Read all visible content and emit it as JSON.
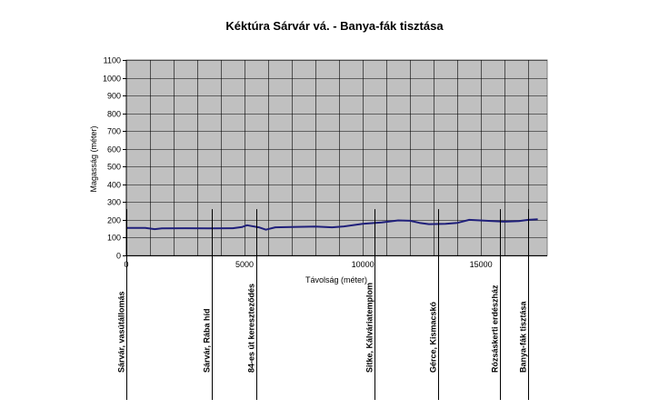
{
  "chart_data": {
    "type": "line",
    "title": "Kéktúra Sárvár vá. - Banya-fák tisztása",
    "xlabel": "Távolság (méter)",
    "ylabel": "Magasság (méter)",
    "xlim": [
      0,
      17800
    ],
    "ylim": [
      0,
      1100
    ],
    "x_ticks": [
      0,
      5000,
      10000,
      15000
    ],
    "y_ticks": [
      0,
      100,
      200,
      300,
      400,
      500,
      600,
      700,
      800,
      900,
      1000,
      1100
    ],
    "grid": true,
    "plot_background": "#c0c0c0",
    "line_color": "#1f1f7a",
    "series": [
      {
        "x": [
          0,
          800,
          1200,
          1500,
          2500,
          3500,
          4500,
          4900,
          5100,
          5600,
          5900,
          6300,
          7000,
          8000,
          8700,
          9200,
          10000,
          10800,
          11500,
          12000,
          12400,
          12800,
          13500,
          14000,
          14500,
          15500,
          16000,
          16600,
          17000,
          17400
        ],
        "values": [
          155,
          155,
          148,
          152,
          153,
          152,
          153,
          160,
          170,
          158,
          145,
          158,
          160,
          162,
          158,
          163,
          178,
          185,
          197,
          195,
          183,
          176,
          178,
          183,
          200,
          193,
          190,
          193,
          200,
          203
        ]
      }
    ],
    "waypoints": [
      {
        "x": 0,
        "label": "Sárvár, vasútállomás"
      },
      {
        "x": 3600,
        "label": "Sárvár, Rába híd"
      },
      {
        "x": 5500,
        "label": "84-es út kereszteződés"
      },
      {
        "x": 10500,
        "label": "Sitke, Kálváriatemplom"
      },
      {
        "x": 13200,
        "label": "Gérce, Kismacskó"
      },
      {
        "x": 15800,
        "label": "Rózsáskerti erdészház"
      },
      {
        "x": 17000,
        "label": "Banya-fák tisztása"
      }
    ]
  }
}
